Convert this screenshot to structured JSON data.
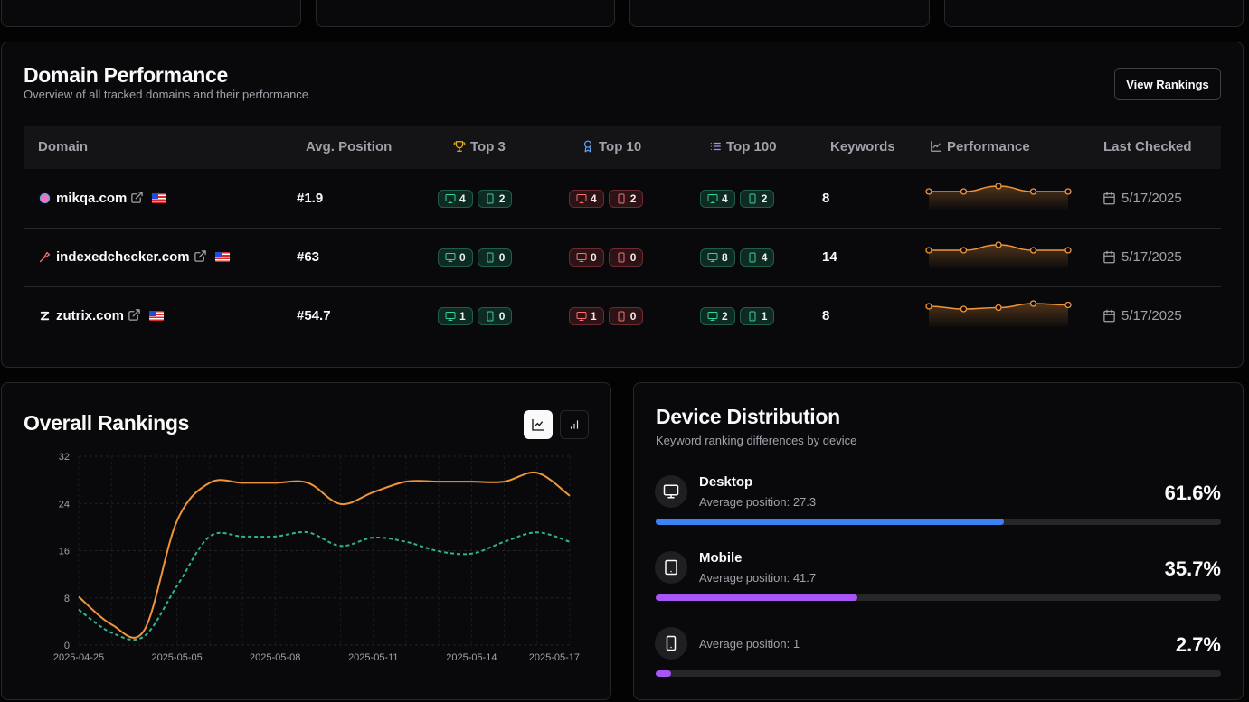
{
  "domain_performance": {
    "title": "Domain Performance",
    "subtitle": "Overview of all tracked domains and their performance",
    "button": "View Rankings",
    "columns": [
      "Domain",
      "Avg. Position",
      "Top 3",
      "Top 10",
      "Top 100",
      "Keywords",
      "Performance",
      "Last Checked"
    ],
    "rows": [
      {
        "domain": "mikqa.com",
        "avg_position": "#1.9",
        "top3": {
          "desktop": 4,
          "mobile": 2
        },
        "top10": {
          "desktop": 4,
          "mobile": 2
        },
        "top100": {
          "desktop": 4,
          "mobile": 2
        },
        "keywords": 8,
        "performance": [
          2,
          2,
          1,
          2,
          2
        ],
        "last_checked": "5/17/2025"
      },
      {
        "domain": "indexedchecker.com",
        "avg_position": "#63",
        "top3": {
          "desktop": 0,
          "mobile": 0
        },
        "top10": {
          "desktop": 0,
          "mobile": 0
        },
        "top100": {
          "desktop": 8,
          "mobile": 4
        },
        "keywords": 14,
        "performance": [
          63,
          63,
          62,
          63,
          63
        ],
        "last_checked": "5/17/2025"
      },
      {
        "domain": "zutrix.com",
        "avg_position": "#54.7",
        "top3": {
          "desktop": 1,
          "mobile": 0
        },
        "top10": {
          "desktop": 1,
          "mobile": 0
        },
        "top100": {
          "desktop": 2,
          "mobile": 1
        },
        "keywords": 8,
        "performance": [
          54,
          56,
          55,
          52,
          53
        ],
        "last_checked": "5/17/2025"
      }
    ]
  },
  "chart_data": {
    "type": "line",
    "title": "Overall Rankings",
    "categories": [
      "2025-04-25",
      null,
      null,
      "2025-05-05",
      null,
      null,
      "2025-05-08",
      null,
      null,
      "2025-05-11",
      null,
      null,
      "2025-05-14",
      null,
      null,
      "2025-05-17"
    ],
    "series": [
      {
        "color": "#f0953a",
        "values": [
          8.2,
          3.5,
          2.5,
          21,
          27.5,
          27.5,
          27.5,
          27.5,
          23.9,
          25.9,
          27.7,
          27.7,
          27.7,
          27.7,
          29.2,
          25.3
        ]
      },
      {
        "color": "#2fb58a",
        "dash": true,
        "values": [
          6,
          2.1,
          1.5,
          10,
          18.4,
          18.4,
          18.4,
          19.1,
          16.8,
          18.2,
          17.5,
          15.9,
          15.5,
          17.5,
          19.1,
          17.5
        ]
      }
    ],
    "ylim": [
      0,
      32
    ],
    "yticks": [
      0,
      8,
      16,
      24,
      32
    ],
    "grid": true
  },
  "device_distribution": {
    "title": "Device Distribution",
    "subtitle": "Keyword ranking differences by device",
    "xlim": [
      0,
      100
    ],
    "items": [
      {
        "label": "Desktop",
        "detail": "Average position: 27.3",
        "value": 61.6,
        "value_label": "61.6%",
        "color": "#3b82f6"
      },
      {
        "label": "Mobile",
        "detail": "Average position: 41.7",
        "value": 35.7,
        "value_label": "35.7%",
        "color": "#a855f7"
      },
      {
        "detail": "Average position: 1",
        "value": 2.7,
        "value_label": "2.7%",
        "color": "#a855f7"
      }
    ]
  }
}
